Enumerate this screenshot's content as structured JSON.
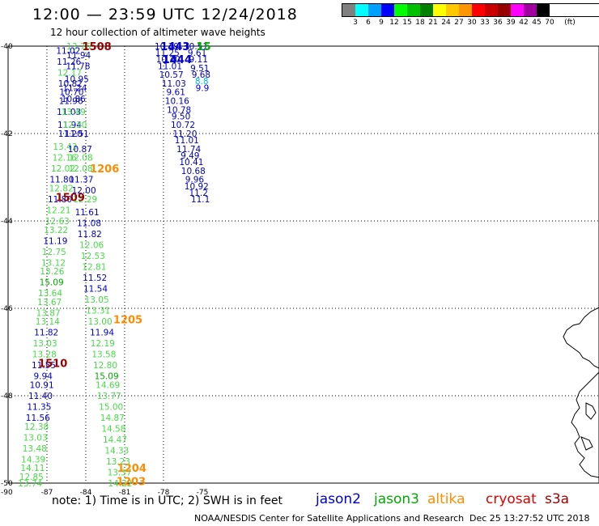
{
  "title": "12:00 — 23:59 UTC 12/24/2018",
  "subtitle": "12 hour collection of altimeter wave heights",
  "legend": {
    "unit": "(ft)",
    "levels": [
      "3",
      "6",
      "9",
      "12",
      "15",
      "18",
      "21",
      "24",
      "27",
      "30",
      "33",
      "36",
      "39",
      "42",
      "45",
      "70"
    ],
    "colors": [
      "#808080",
      "#00ffff",
      "#00a0ff",
      "#0000ff",
      "#00ff00",
      "#00c000",
      "#008000",
      "#ffff00",
      "#ffc800",
      "#ff9600",
      "#ff0000",
      "#c80000",
      "#960000",
      "#ff00ff",
      "#a000a0",
      "#000000"
    ]
  },
  "map": {
    "lon_ticks": [
      "-87",
      "-84",
      "-81",
      "-78",
      "-75"
    ],
    "lat_ticks": [
      "-40",
      "-42",
      "-44",
      "-46",
      "-48",
      "-50"
    ],
    "corner_label": "-90",
    "colors": {
      "green": "#44dd44",
      "blue": "#0000cc",
      "darkgreen": "#00aa00",
      "cyan": "#00bbee",
      "maroon": "#990000",
      "orange": "#ff8c00",
      "navy": "#0000cc"
    },
    "track_times": [
      {
        "text": "1508",
        "lon": -83.15,
        "lat": -40.0,
        "color": "maroon"
      },
      {
        "text": "1206",
        "lon": -82.55,
        "lat": -42.8,
        "color": "orange"
      },
      {
        "text": "1509",
        "lon": -85.2,
        "lat": -43.45,
        "color": "maroon"
      },
      {
        "text": "1205",
        "lon": -80.75,
        "lat": -46.25,
        "color": "orange"
      },
      {
        "text": "1510",
        "lon": -86.55,
        "lat": -47.25,
        "color": "maroon"
      },
      {
        "text": "1204",
        "lon": -80.45,
        "lat": -49.65,
        "color": "orange"
      },
      {
        "text": "1203",
        "lon": -80.5,
        "lat": -49.95,
        "color": "orange"
      },
      {
        "text": "1443",
        "lon": -77.1,
        "lat": -40.0,
        "color": "navy"
      },
      {
        "text": "1444",
        "lon": -76.95,
        "lat": -40.3,
        "color": "navy"
      },
      {
        "text": "15",
        "lon": -74.9,
        "lat": -40.0,
        "color": "darkgreen"
      }
    ],
    "observations": [
      {
        "text": "13.76",
        "lon": -84.55,
        "lat": -40.0,
        "color": "green"
      },
      {
        "text": "11.02",
        "lon": -85.35,
        "lat": -40.1,
        "color": "blue"
      },
      {
        "text": "11.94",
        "lon": -84.55,
        "lat": -40.2,
        "color": "blue"
      },
      {
        "text": "11.26",
        "lon": -85.3,
        "lat": -40.35,
        "color": "blue"
      },
      {
        "text": "11.78",
        "lon": -84.6,
        "lat": -40.45,
        "color": "blue"
      },
      {
        "text": "12.17",
        "lon": -85.25,
        "lat": -40.6,
        "color": "green"
      },
      {
        "text": "10.95",
        "lon": -84.7,
        "lat": -40.75,
        "color": "blue"
      },
      {
        "text": "10.82",
        "lon": -85.2,
        "lat": -40.85,
        "color": "blue"
      },
      {
        "text": "11.24",
        "lon": -84.85,
        "lat": -40.95,
        "color": "blue"
      },
      {
        "text": "10.70",
        "lon": -85.1,
        "lat": -41.05,
        "color": "blue"
      },
      {
        "text": "10.86",
        "lon": -84.95,
        "lat": -41.2,
        "color": "blue"
      },
      {
        "text": "11.96",
        "lon": -85.15,
        "lat": -41.25,
        "color": "blue"
      },
      {
        "text": "11.03",
        "lon": -85.3,
        "lat": -41.5,
        "color": "blue"
      },
      {
        "text": "13.49",
        "lon": -84.95,
        "lat": -41.5,
        "color": "green"
      },
      {
        "text": "11.94",
        "lon": -85.25,
        "lat": -41.8,
        "color": "blue"
      },
      {
        "text": "12.30",
        "lon": -84.85,
        "lat": -41.8,
        "color": "green"
      },
      {
        "text": "11.20",
        "lon": -85.2,
        "lat": -42.0,
        "color": "blue"
      },
      {
        "text": "11.51",
        "lon": -84.7,
        "lat": -42.0,
        "color": "blue"
      },
      {
        "text": "13.43",
        "lon": -85.6,
        "lat": -42.3,
        "color": "green"
      },
      {
        "text": "10.87",
        "lon": -84.45,
        "lat": -42.35,
        "color": "blue"
      },
      {
        "text": "12.16",
        "lon": -85.65,
        "lat": -42.55,
        "color": "green"
      },
      {
        "text": "12.08",
        "lon": -84.4,
        "lat": -42.55,
        "color": "green"
      },
      {
        "text": "12.02",
        "lon": -85.75,
        "lat": -42.8,
        "color": "green"
      },
      {
        "text": "12.08",
        "lon": -84.4,
        "lat": -42.8,
        "color": "green"
      },
      {
        "text": "11.80",
        "lon": -85.85,
        "lat": -43.05,
        "color": "blue"
      },
      {
        "text": "11.37",
        "lon": -84.35,
        "lat": -43.05,
        "color": "blue"
      },
      {
        "text": "12.82",
        "lon": -85.9,
        "lat": -43.25,
        "color": "green"
      },
      {
        "text": "12.00",
        "lon": -84.15,
        "lat": -43.3,
        "color": "blue"
      },
      {
        "text": "11.80",
        "lon": -86.0,
        "lat": -43.5,
        "color": "blue"
      },
      {
        "text": "12.29",
        "lon": -84.05,
        "lat": -43.5,
        "color": "green"
      },
      {
        "text": "12.21",
        "lon": -86.1,
        "lat": -43.75,
        "color": "green"
      },
      {
        "text": "11.61",
        "lon": -83.9,
        "lat": -43.8,
        "color": "blue"
      },
      {
        "text": "12.63",
        "lon": -86.2,
        "lat": -44.0,
        "color": "green"
      },
      {
        "text": "11.08",
        "lon": -83.75,
        "lat": -44.05,
        "color": "blue"
      },
      {
        "text": "13.22",
        "lon": -86.3,
        "lat": -44.2,
        "color": "green"
      },
      {
        "text": "11.82",
        "lon": -83.7,
        "lat": -44.3,
        "color": "blue"
      },
      {
        "text": "11.19",
        "lon": -86.35,
        "lat": -44.45,
        "color": "blue"
      },
      {
        "text": "12.06",
        "lon": -83.55,
        "lat": -44.55,
        "color": "green"
      },
      {
        "text": "12.75",
        "lon": -86.45,
        "lat": -44.7,
        "color": "green"
      },
      {
        "text": "12.53",
        "lon": -83.45,
        "lat": -44.8,
        "color": "green"
      },
      {
        "text": "13.12",
        "lon": -86.5,
        "lat": -44.95,
        "color": "green"
      },
      {
        "text": "12.81",
        "lon": -83.35,
        "lat": -45.05,
        "color": "green"
      },
      {
        "text": "13.26",
        "lon": -86.6,
        "lat": -45.15,
        "color": "green"
      },
      {
        "text": "11.52",
        "lon": -83.3,
        "lat": -45.3,
        "color": "blue"
      },
      {
        "text": "15.09",
        "lon": -86.65,
        "lat": -45.4,
        "color": "darkgreen"
      },
      {
        "text": "11.54",
        "lon": -83.25,
        "lat": -45.55,
        "color": "blue"
      },
      {
        "text": "13.64",
        "lon": -86.75,
        "lat": -45.65,
        "color": "green"
      },
      {
        "text": "13.05",
        "lon": -83.15,
        "lat": -45.8,
        "color": "green"
      },
      {
        "text": "13.67",
        "lon": -86.8,
        "lat": -45.85,
        "color": "green"
      },
      {
        "text": "13.87",
        "lon": -86.9,
        "lat": -46.1,
        "color": "green"
      },
      {
        "text": "13.31",
        "lon": -83.05,
        "lat": -46.05,
        "color": "green"
      },
      {
        "text": "13.14",
        "lon": -86.95,
        "lat": -46.3,
        "color": "green"
      },
      {
        "text": "13.00",
        "lon": -82.9,
        "lat": -46.3,
        "color": "green"
      },
      {
        "text": "11.82",
        "lon": -87.05,
        "lat": -46.55,
        "color": "blue"
      },
      {
        "text": "11.94",
        "lon": -82.75,
        "lat": -46.55,
        "color": "blue"
      },
      {
        "text": "13.03",
        "lon": -87.15,
        "lat": -46.8,
        "color": "green"
      },
      {
        "text": "12.19",
        "lon": -82.7,
        "lat": -46.8,
        "color": "green"
      },
      {
        "text": "13.28",
        "lon": -87.2,
        "lat": -47.05,
        "color": "green"
      },
      {
        "text": "13.58",
        "lon": -82.6,
        "lat": -47.05,
        "color": "green"
      },
      {
        "text": "11.55",
        "lon": -87.25,
        "lat": -47.3,
        "color": "blue"
      },
      {
        "text": "12.80",
        "lon": -82.5,
        "lat": -47.3,
        "color": "green"
      },
      {
        "text": "9.94",
        "lon": -87.3,
        "lat": -47.55,
        "color": "blue"
      },
      {
        "text": "15.09",
        "lon": -82.4,
        "lat": -47.55,
        "color": "darkgreen"
      },
      {
        "text": "10.91",
        "lon": -87.4,
        "lat": -47.75,
        "color": "blue"
      },
      {
        "text": "14.69",
        "lon": -82.3,
        "lat": -47.75,
        "color": "green"
      },
      {
        "text": "11.40",
        "lon": -87.5,
        "lat": -48.0,
        "color": "blue"
      },
      {
        "text": "13.77",
        "lon": -82.2,
        "lat": -48.0,
        "color": "green"
      },
      {
        "text": "11.35",
        "lon": -87.6,
        "lat": -48.25,
        "color": "blue"
      },
      {
        "text": "15.00",
        "lon": -82.05,
        "lat": -48.25,
        "color": "green"
      },
      {
        "text": "11.56",
        "lon": -87.7,
        "lat": -48.5,
        "color": "blue"
      },
      {
        "text": "14.87",
        "lon": -81.95,
        "lat": -48.5,
        "color": "green"
      },
      {
        "text": "12.38",
        "lon": -87.8,
        "lat": -48.7,
        "color": "green"
      },
      {
        "text": "14.58",
        "lon": -81.85,
        "lat": -48.75,
        "color": "green"
      },
      {
        "text": "13.03",
        "lon": -87.9,
        "lat": -48.95,
        "color": "green"
      },
      {
        "text": "14.47",
        "lon": -81.75,
        "lat": -49.0,
        "color": "green"
      },
      {
        "text": "13.48",
        "lon": -87.95,
        "lat": -49.2,
        "color": "green"
      },
      {
        "text": "14.33",
        "lon": -81.6,
        "lat": -49.25,
        "color": "green"
      },
      {
        "text": "14.39",
        "lon": -88.05,
        "lat": -49.45,
        "color": "green"
      },
      {
        "text": "13.23",
        "lon": -81.5,
        "lat": -49.5,
        "color": "green"
      },
      {
        "text": "14.11",
        "lon": -88.1,
        "lat": -49.65,
        "color": "green"
      },
      {
        "text": "13.37",
        "lon": -81.4,
        "lat": -49.75,
        "color": "green"
      },
      {
        "text": "12.85",
        "lon": -88.2,
        "lat": -49.85,
        "color": "green"
      },
      {
        "text": "14.22",
        "lon": -81.35,
        "lat": -50.0,
        "color": "green"
      },
      {
        "text": "13.74",
        "lon": -88.3,
        "lat": -50.0,
        "color": "green"
      },
      {
        "text": "10.39",
        "lon": -77.75,
        "lat": -40.0,
        "color": "blue"
      },
      {
        "text": "11.25",
        "lon": -77.7,
        "lat": -40.15,
        "color": "blue"
      },
      {
        "text": "10.20",
        "lon": -77.65,
        "lat": -40.3,
        "color": "blue"
      },
      {
        "text": "11.01",
        "lon": -77.5,
        "lat": -40.45,
        "color": "blue"
      },
      {
        "text": "10.57",
        "lon": -77.4,
        "lat": -40.65,
        "color": "blue"
      },
      {
        "text": "11.03",
        "lon": -77.2,
        "lat": -40.85,
        "color": "blue"
      },
      {
        "text": "9.61",
        "lon": -77.05,
        "lat": -41.05,
        "color": "blue"
      },
      {
        "text": "10.16",
        "lon": -76.95,
        "lat": -41.25,
        "color": "blue"
      },
      {
        "text": "10.78",
        "lon": -76.8,
        "lat": -41.45,
        "color": "blue"
      },
      {
        "text": "9.50",
        "lon": -76.65,
        "lat": -41.6,
        "color": "blue"
      },
      {
        "text": "10.72",
        "lon": -76.5,
        "lat": -41.8,
        "color": "blue"
      },
      {
        "text": "11.20",
        "lon": -76.35,
        "lat": -42.0,
        "color": "blue"
      },
      {
        "text": "11.01",
        "lon": -76.2,
        "lat": -42.15,
        "color": "blue"
      },
      {
        "text": "11.74",
        "lon": -76.05,
        "lat": -42.35,
        "color": "blue"
      },
      {
        "text": "9.49",
        "lon": -75.95,
        "lat": -42.5,
        "color": "blue"
      },
      {
        "text": "10.41",
        "lon": -75.85,
        "lat": -42.65,
        "color": "blue"
      },
      {
        "text": "10.68",
        "lon": -75.7,
        "lat": -42.85,
        "color": "blue"
      },
      {
        "text": "9.96",
        "lon": -75.6,
        "lat": -43.05,
        "color": "blue"
      },
      {
        "text": "10.92",
        "lon": -75.45,
        "lat": -43.2,
        "color": "blue"
      },
      {
        "text": "11.2",
        "lon": -75.3,
        "lat": -43.35,
        "color": "blue"
      },
      {
        "text": "11.1",
        "lon": -75.15,
        "lat": -43.5,
        "color": "blue"
      },
      {
        "text": "10.51",
        "lon": -75.5,
        "lat": -40.0,
        "color": "blue"
      },
      {
        "text": "9.61",
        "lon": -75.4,
        "lat": -40.15,
        "color": "blue"
      },
      {
        "text": "9.11",
        "lon": -75.3,
        "lat": -40.3,
        "color": "blue"
      },
      {
        "text": "9.51",
        "lon": -75.2,
        "lat": -40.5,
        "color": "blue"
      },
      {
        "text": "9.68",
        "lon": -75.1,
        "lat": -40.65,
        "color": "blue"
      },
      {
        "text": "8.8",
        "lon": -75.05,
        "lat": -40.8,
        "color": "cyan"
      },
      {
        "text": "9.9",
        "lon": -75.0,
        "lat": -40.95,
        "color": "blue"
      }
    ]
  },
  "note": "note: 1) Time is in UTC; 2) SWH is in feet",
  "satellites": [
    {
      "name": "jason2",
      "color": "#0000cc"
    },
    {
      "name": "jason3",
      "color": "#00aa00"
    },
    {
      "name": "altika",
      "color": "#ff8c00"
    },
    {
      "name": "cryosat",
      "color": "#dd0000"
    },
    {
      "name": "s3a",
      "color": "#990000"
    }
  ],
  "credit": "NOAA/NESDIS Center for Satellite Applications and Research",
  "timestamp": "Dec 25 13:27:52 UTC 2018"
}
